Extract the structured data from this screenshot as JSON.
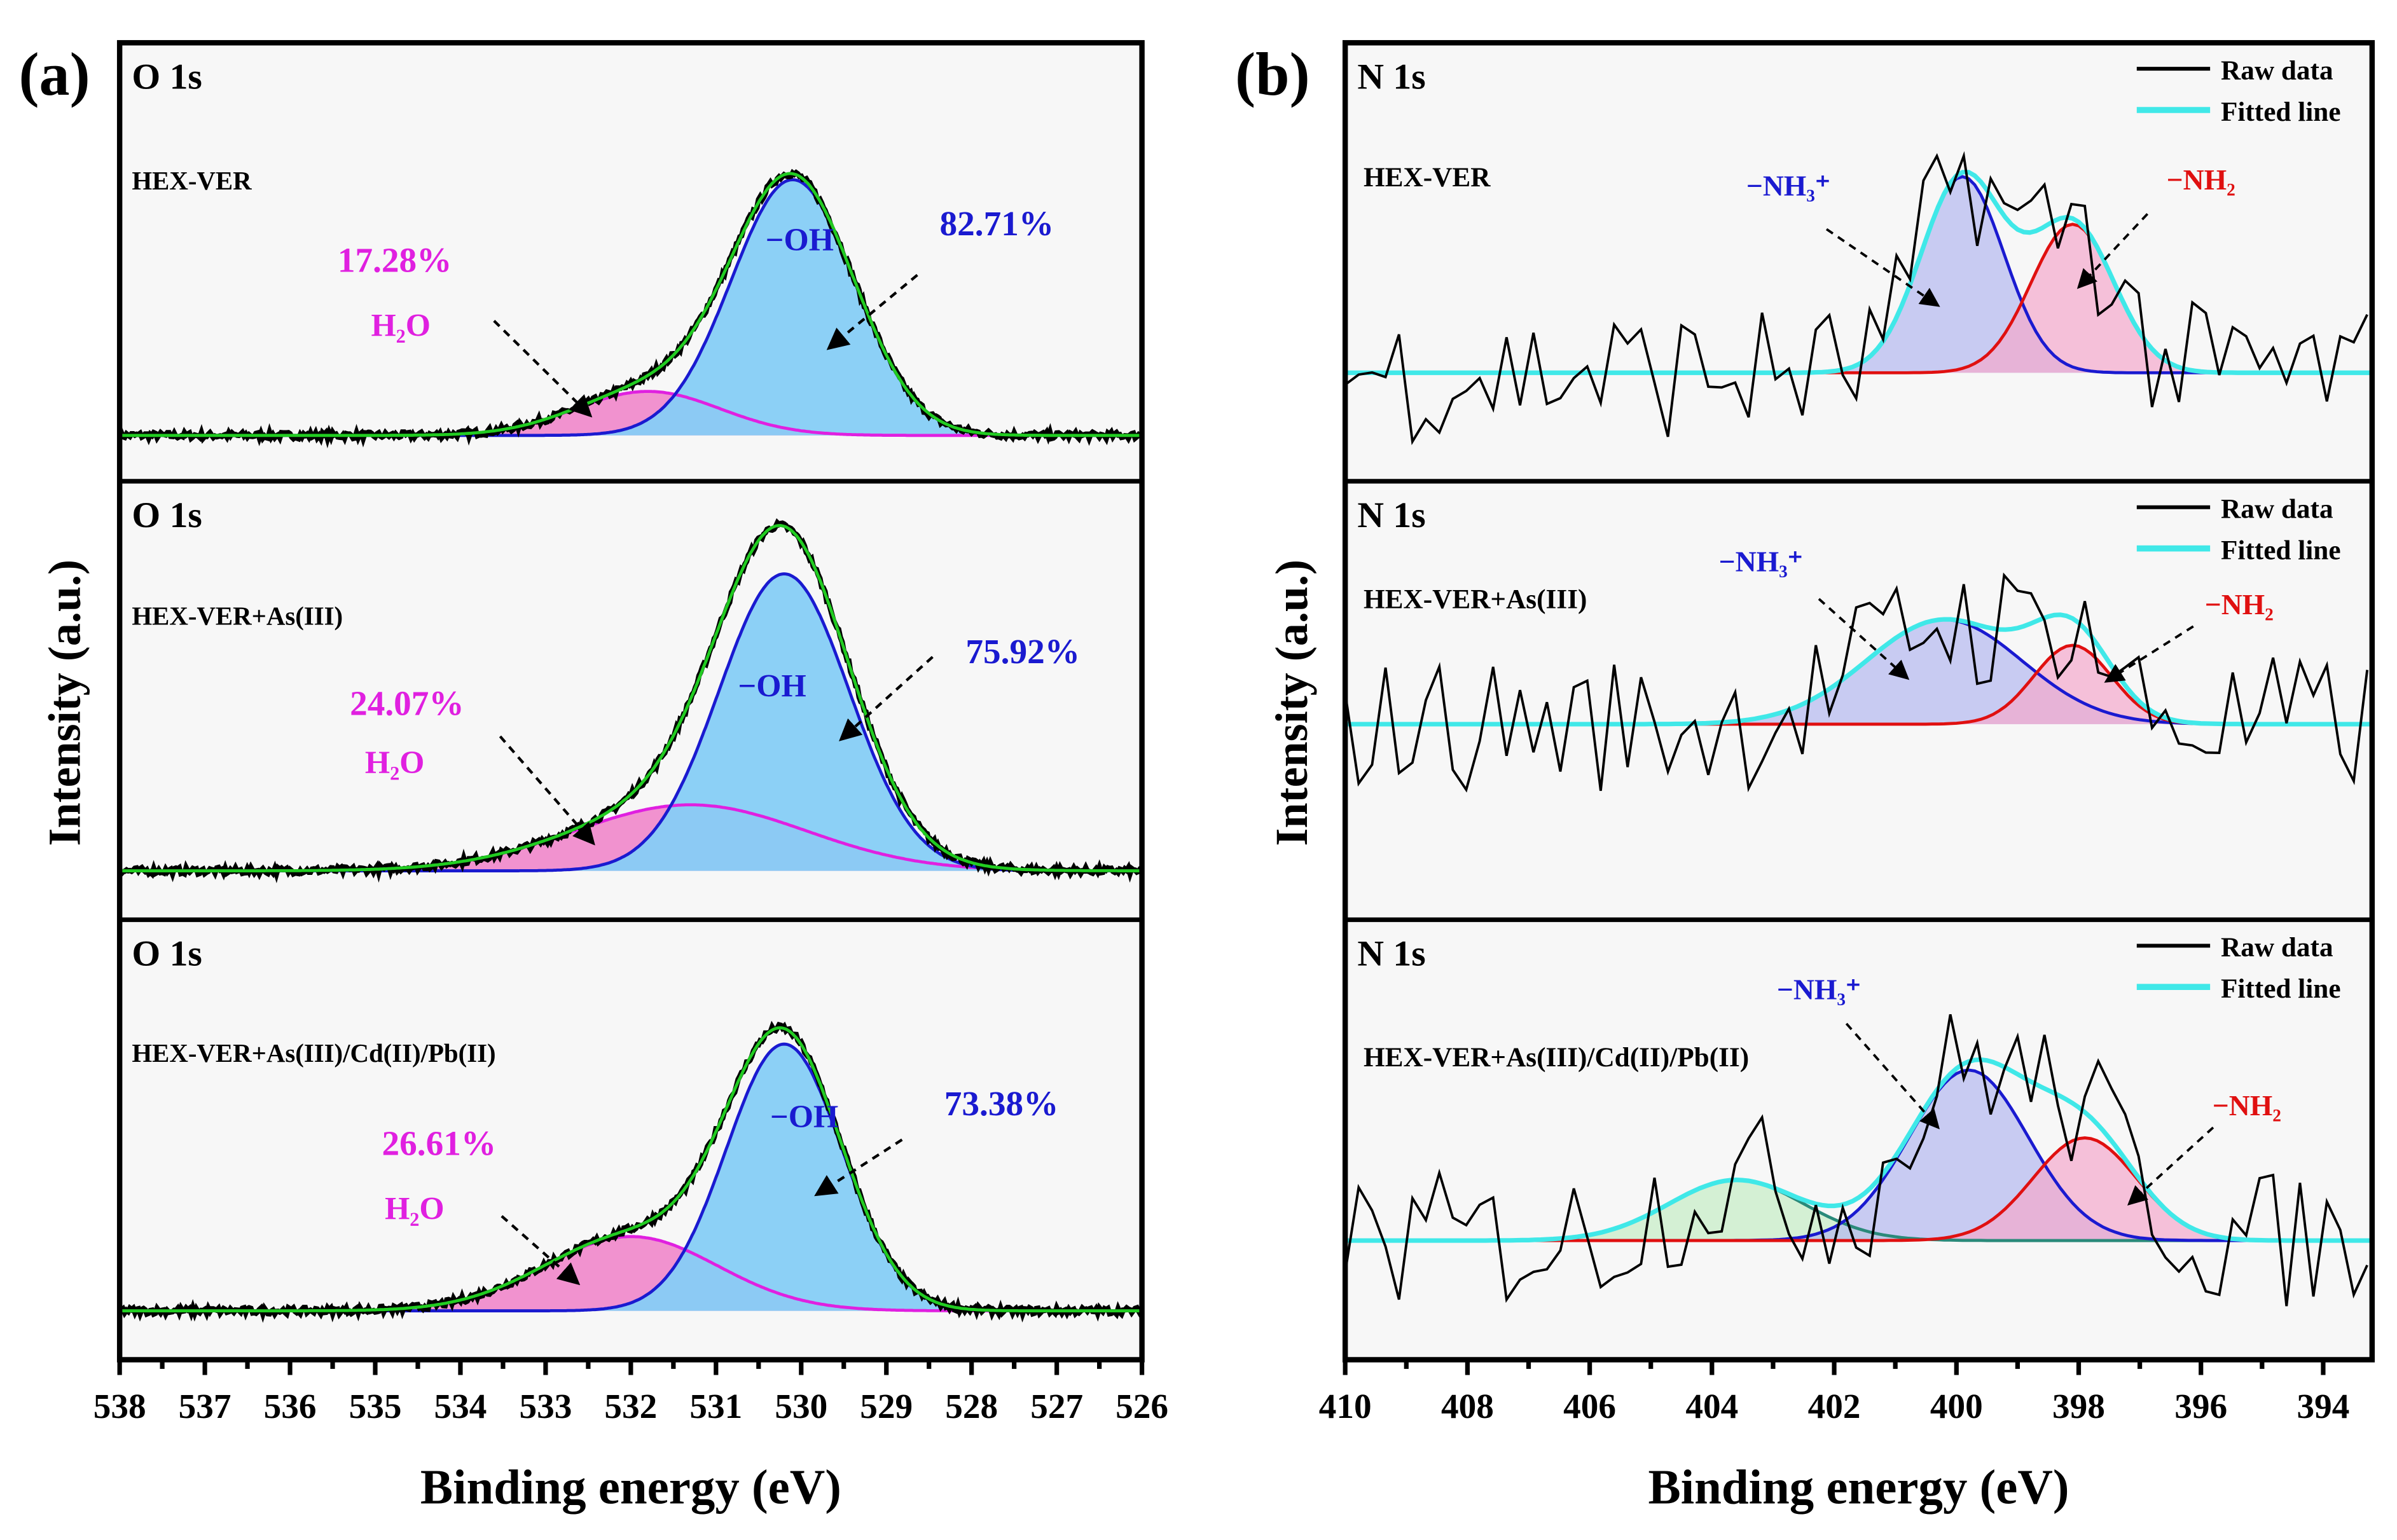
{
  "chart_data": [
    {
      "type": "line",
      "panel_label": "(a)",
      "xlabel": "Binding energy (eV)",
      "ylabel": "Intensity (a.u.)",
      "xlim": [
        538,
        526
      ],
      "xticks": [
        538,
        537,
        536,
        535,
        534,
        533,
        532,
        531,
        530,
        529,
        528,
        527,
        526
      ],
      "subplots": [
        {
          "title": "O 1s",
          "sample": "HEX-VER",
          "components": [
            {
              "name": "H2O",
              "label": "H₂O",
              "percent": "17.28%",
              "center": 531.8,
              "fwhm": 2.0,
              "amplitude": 16,
              "color": "#e020e0",
              "fill": "#f08ccc"
            },
            {
              "name": "-OH",
              "label": "−OH",
              "percent": "82.71%",
              "center": 530.1,
              "fwhm": 1.7,
              "amplitude": 93,
              "color": "#1a1ad0",
              "fill": "#86cdf6"
            }
          ],
          "noise": 1.2
        },
        {
          "title": "O 1s",
          "sample": "HEX-VER+As(III)",
          "components": [
            {
              "name": "H2O",
              "label": "H₂O",
              "percent": "24.07%",
              "center": 531.3,
              "fwhm": 3.2,
              "amplitude": 24,
              "color": "#e020e0",
              "fill": "#f08ccc"
            },
            {
              "name": "-OH",
              "label": "−OH",
              "percent": "75.92%",
              "center": 530.2,
              "fwhm": 1.8,
              "amplitude": 108,
              "color": "#1a1ad0",
              "fill": "#86cdf6"
            }
          ],
          "noise": 1.2
        },
        {
          "title": "O 1s",
          "sample": "HEX-VER+As(III)/Cd(II)/Pb(II)",
          "components": [
            {
              "name": "H2O",
              "label": "H₂O",
              "percent": "26.61%",
              "center": 532.0,
              "fwhm": 2.4,
              "amplitude": 27,
              "color": "#e020e0",
              "fill": "#f08ccc"
            },
            {
              "name": "-OH",
              "label": "−OH",
              "percent": "73.38%",
              "center": 530.2,
              "fwhm": 1.6,
              "amplitude": 97,
              "color": "#1a1ad0",
              "fill": "#86cdf6"
            }
          ],
          "noise": 1.2
        }
      ]
    },
    {
      "type": "line",
      "panel_label": "(b)",
      "xlabel": "Binding energy (eV)",
      "ylabel": "Intensity (a.u.)",
      "xlim": [
        410,
        393.2
      ],
      "xticks": [
        410,
        408,
        406,
        404,
        402,
        400,
        398,
        396,
        394
      ],
      "legend": {
        "position": "top-right",
        "entries": [
          {
            "label": "Raw data",
            "color": "#000000"
          },
          {
            "label": "Fitted line",
            "color": "#30e0e0"
          }
        ]
      },
      "subplots": [
        {
          "title": "N 1s",
          "sample": "HEX-VER",
          "components": [
            {
              "name": "-NH3+",
              "label": "−NH₃⁺",
              "center": 399.9,
              "fwhm": 1.6,
              "amplitude": 107,
              "color": "#1a1ad0",
              "fill": "#b4b8f0"
            },
            {
              "name": "-NH2",
              "label": "−NH₂",
              "center": 398.1,
              "fwhm": 1.6,
              "amplitude": 81,
              "color": "#e01010",
              "fill": "#f4a8cc"
            }
          ],
          "noise": 38
        },
        {
          "title": "N 1s",
          "sample": "HEX-VER+As(III)",
          "components": [
            {
              "name": "-NH3+",
              "label": "−NH₃⁺",
              "center": 400.2,
              "fwhm": 3.0,
              "amplitude": 57,
              "color": "#1a1ad0",
              "fill": "#b4b8f0"
            },
            {
              "name": "-NH2",
              "label": "−NH₂",
              "center": 398.1,
              "fwhm": 1.5,
              "amplitude": 43,
              "color": "#e01010",
              "fill": "#f4a8cc"
            }
          ],
          "noise": 38
        },
        {
          "title": "N 1s",
          "sample": "HEX-VER+As(III)/Cd(II)/Pb(II)",
          "components": [
            {
              "name": "peak-403.6",
              "label": "",
              "center": 403.6,
              "fwhm": 2.6,
              "amplitude": 33,
              "color": "#2a8a7a",
              "fill": "#c4ecc4"
            },
            {
              "name": "-NH3+",
              "label": "−NH₃⁺",
              "center": 399.8,
              "fwhm": 2.3,
              "amplitude": 93,
              "color": "#1a1ad0",
              "fill": "#b4b8f0"
            },
            {
              "name": "-NH2",
              "label": "−NH₂",
              "center": 397.9,
              "fwhm": 2.0,
              "amplitude": 56,
              "color": "#e01010",
              "fill": "#f4a8cc"
            }
          ],
          "noise": 38
        }
      ]
    }
  ]
}
